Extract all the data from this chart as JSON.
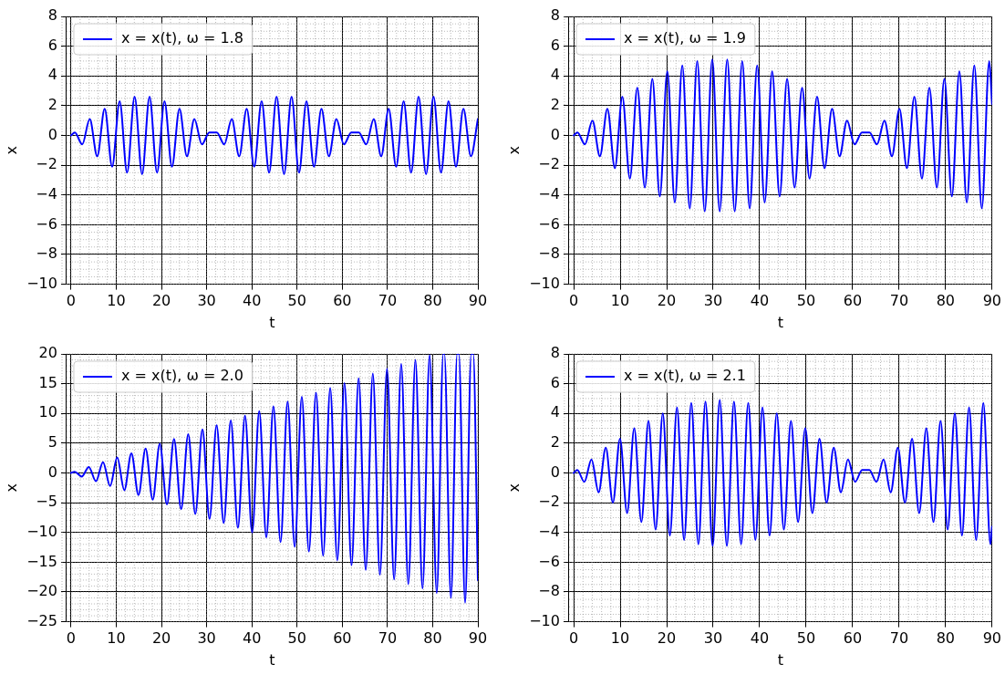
{
  "chart_data": [
    {
      "type": "line",
      "xlabel": "t",
      "ylabel": "x",
      "xlim": [
        -1,
        90
      ],
      "ylim": [
        -10,
        8
      ],
      "xticks": [
        0,
        10,
        20,
        30,
        40,
        50,
        60,
        70,
        80,
        90
      ],
      "yticks": [
        -10,
        -8,
        -6,
        -4,
        -2,
        0,
        2,
        4,
        6,
        8
      ],
      "grid": true,
      "legend": "top left",
      "series": [
        {
          "name": "x = x(t), ω = 1.8",
          "color": "#0000ff",
          "x": [
            0,
            0.83,
            2.48,
            4.13,
            5.79,
            7.44,
            9.09,
            10.75,
            12.4,
            14.06,
            15.71,
            17.36,
            19.02,
            20.67,
            22.32,
            23.98,
            25.63,
            27.28,
            28.94,
            30.59,
            32.24,
            33.9,
            35.55,
            37.2,
            38.86,
            40.51,
            42.16,
            43.82,
            45.47,
            47.12,
            48.78,
            50.43,
            52.08,
            53.74,
            55.39,
            57.04,
            58.7,
            60.35,
            62.0,
            63.66,
            65.31,
            66.96,
            68.62,
            70.27,
            71.92,
            73.58,
            75.23,
            76.88,
            78.54,
            80.19,
            81.84,
            83.5,
            85.15,
            86.8,
            88.46,
            90
          ],
          "values": [
            0,
            0.2,
            -0.6,
            1.1,
            -1.4,
            1.8,
            -2.1,
            2.3,
            -2.5,
            2.6,
            -2.6,
            2.6,
            -2.5,
            2.3,
            -2.1,
            1.8,
            -1.4,
            1.1,
            -0.6,
            0.2,
            0.2,
            -0.6,
            1.1,
            -1.4,
            1.8,
            -2.1,
            2.3,
            -2.5,
            2.6,
            -2.6,
            2.6,
            -2.5,
            2.3,
            -2.1,
            1.8,
            -1.4,
            1.1,
            -0.6,
            0.2,
            0.2,
            -0.6,
            1.1,
            -1.4,
            1.8,
            -2.1,
            2.3,
            -2.5,
            2.6,
            -2.6,
            2.6,
            -2.5,
            2.3,
            -2.1,
            1.8,
            -1.4,
            1.1
          ]
        }
      ]
    },
    {
      "type": "line",
      "xlabel": "t",
      "ylabel": "x",
      "xlim": [
        -1,
        90
      ],
      "ylim": [
        -10,
        8
      ],
      "xticks": [
        0,
        10,
        20,
        30,
        40,
        50,
        60,
        70,
        80,
        90
      ],
      "yticks": [
        -10,
        -8,
        -6,
        -4,
        -2,
        0,
        2,
        4,
        6,
        8
      ],
      "grid": true,
      "legend": "top left",
      "series": [
        {
          "name": "x = x(t), ω = 1.9",
          "color": "#0000ff",
          "x": [
            0,
            0.81,
            2.42,
            4.03,
            5.64,
            7.25,
            8.86,
            10.47,
            12.08,
            13.69,
            15.3,
            16.92,
            18.53,
            20.14,
            21.75,
            23.36,
            24.97,
            26.58,
            28.19,
            29.8,
            31.41,
            33.03,
            34.64,
            36.25,
            37.86,
            39.47,
            41.08,
            42.69,
            44.3,
            45.91,
            47.52,
            49.13,
            50.74,
            52.35,
            53.96,
            55.58,
            57.19,
            58.8,
            60.41,
            62.02,
            63.63,
            65.24,
            66.85,
            68.46,
            70.07,
            71.68,
            73.29,
            74.91,
            76.52,
            78.13,
            79.74,
            81.35,
            82.96,
            84.57,
            86.18,
            87.79,
            89.4,
            90
          ],
          "values": [
            0,
            0.2,
            -0.6,
            1.0,
            -1.4,
            1.8,
            -2.2,
            2.6,
            -2.9,
            3.2,
            -3.5,
            3.8,
            -4.1,
            4.3,
            -4.5,
            4.7,
            -4.9,
            5.0,
            -5.1,
            5.1,
            -5.1,
            5.1,
            -5.1,
            5.0,
            -4.9,
            4.7,
            -4.5,
            4.3,
            -4.1,
            3.8,
            -3.5,
            3.2,
            -2.9,
            2.6,
            -2.2,
            1.8,
            -1.4,
            1.0,
            -0.6,
            0.2,
            0.2,
            -0.6,
            1.0,
            -1.4,
            1.8,
            -2.2,
            2.6,
            -2.9,
            3.2,
            -3.5,
            3.8,
            -4.1,
            4.3,
            -4.5,
            4.7,
            -4.9,
            5.0,
            2.1
          ]
        }
      ]
    },
    {
      "type": "line",
      "xlabel": "t",
      "ylabel": "x",
      "xlim": [
        -1,
        90
      ],
      "ylim": [
        -25,
        20
      ],
      "xticks": [
        0,
        10,
        20,
        30,
        40,
        50,
        60,
        70,
        80,
        90
      ],
      "yticks": [
        -25,
        -20,
        -15,
        -10,
        -5,
        0,
        5,
        10,
        15,
        20
      ],
      "grid": true,
      "legend": "top left",
      "series": [
        {
          "name": "x = x(t), ω = 2.0",
          "color": "#0000ff",
          "x": [
            0,
            0.79,
            2.36,
            3.93,
            5.5,
            7.07,
            8.64,
            10.21,
            11.78,
            13.35,
            14.92,
            16.49,
            18.06,
            19.63,
            21.21,
            22.78,
            24.35,
            25.92,
            27.49,
            29.06,
            30.63,
            32.2,
            33.77,
            35.34,
            36.91,
            38.48,
            40.06,
            41.63,
            43.2,
            44.77,
            46.34,
            47.91,
            49.48,
            51.05,
            52.62,
            54.19,
            55.76,
            57.33,
            58.9,
            60.48,
            62.05,
            63.62,
            65.19,
            66.76,
            68.33,
            69.9,
            71.47,
            73.04,
            74.61,
            76.18,
            77.75,
            79.33,
            80.9,
            82.35,
            82.59,
            84.04,
            85.43,
            85.79,
            87.18,
            88.53,
            88.97,
            90
          ],
          "values": [
            0,
            0.2,
            -0.6,
            1.0,
            -1.4,
            1.8,
            -2.2,
            2.6,
            -2.9,
            3.3,
            -3.7,
            4.1,
            -4.5,
            4.9,
            -5.3,
            5.7,
            -6.1,
            6.5,
            -6.9,
            7.3,
            -7.7,
            8.0,
            -8.4,
            8.8,
            -9.2,
            9.6,
            -10.0,
            10.4,
            -10.8,
            11.2,
            -11.6,
            12.0,
            -12.4,
            12.8,
            -13.2,
            13.5,
            -13.9,
            14.3,
            -14.7,
            15.1,
            -15.5,
            15.9,
            -16.3,
            16.7,
            -17.1,
            17.5,
            -17.9,
            18.3,
            -18.7,
            19.0,
            -19.4,
            19.8,
            -20.2,
            20,
            20,
            -21.0,
            20,
            20,
            -21.8,
            20,
            20,
            -18.0
          ]
        }
      ]
    },
    {
      "type": "line",
      "xlabel": "t",
      "ylabel": "x",
      "xlim": [
        -1,
        90
      ],
      "ylim": [
        -10,
        8
      ],
      "xticks": [
        0,
        10,
        20,
        30,
        40,
        50,
        60,
        70,
        80,
        90
      ],
      "yticks": [
        -10,
        -8,
        -6,
        -4,
        -2,
        0,
        2,
        4,
        6,
        8
      ],
      "grid": true,
      "legend": "top left",
      "series": [
        {
          "name": "x = x(t), ω = 2.1",
          "color": "#0000ff",
          "x": [
            0,
            0.77,
            2.3,
            3.83,
            5.36,
            6.9,
            8.43,
            9.96,
            11.49,
            13.03,
            14.56,
            16.09,
            17.62,
            19.16,
            20.69,
            22.22,
            23.75,
            25.29,
            26.82,
            28.35,
            29.88,
            31.42,
            32.95,
            34.48,
            36.01,
            37.55,
            39.08,
            40.61,
            42.14,
            43.68,
            45.21,
            46.74,
            48.27,
            49.81,
            51.34,
            52.87,
            54.4,
            55.94,
            57.47,
            59.0,
            60.53,
            62.06,
            63.6,
            65.13,
            66.66,
            68.19,
            69.73,
            71.26,
            72.79,
            74.32,
            75.86,
            77.39,
            78.92,
            80.45,
            81.99,
            83.52,
            85.05,
            86.58,
            88.12,
            89.65,
            90
          ],
          "values": [
            0,
            0.2,
            -0.6,
            0.9,
            -1.3,
            1.7,
            -2.0,
            2.3,
            -2.7,
            3.0,
            -3.3,
            3.5,
            -3.8,
            4.0,
            -4.2,
            4.4,
            -4.5,
            4.7,
            -4.8,
            4.8,
            -4.9,
            4.9,
            -4.9,
            4.8,
            -4.8,
            4.7,
            -4.5,
            4.4,
            -4.2,
            4.0,
            -3.8,
            3.5,
            -3.3,
            3.0,
            -2.7,
            2.3,
            -2.0,
            1.7,
            -1.3,
            0.9,
            -0.6,
            0.2,
            0.2,
            -0.6,
            0.9,
            -1.3,
            1.7,
            -2.0,
            2.3,
            -2.7,
            3.0,
            -3.3,
            3.5,
            -3.8,
            4.0,
            -4.2,
            4.4,
            -4.5,
            4.7,
            -4.8,
            -3.6
          ]
        }
      ]
    }
  ]
}
